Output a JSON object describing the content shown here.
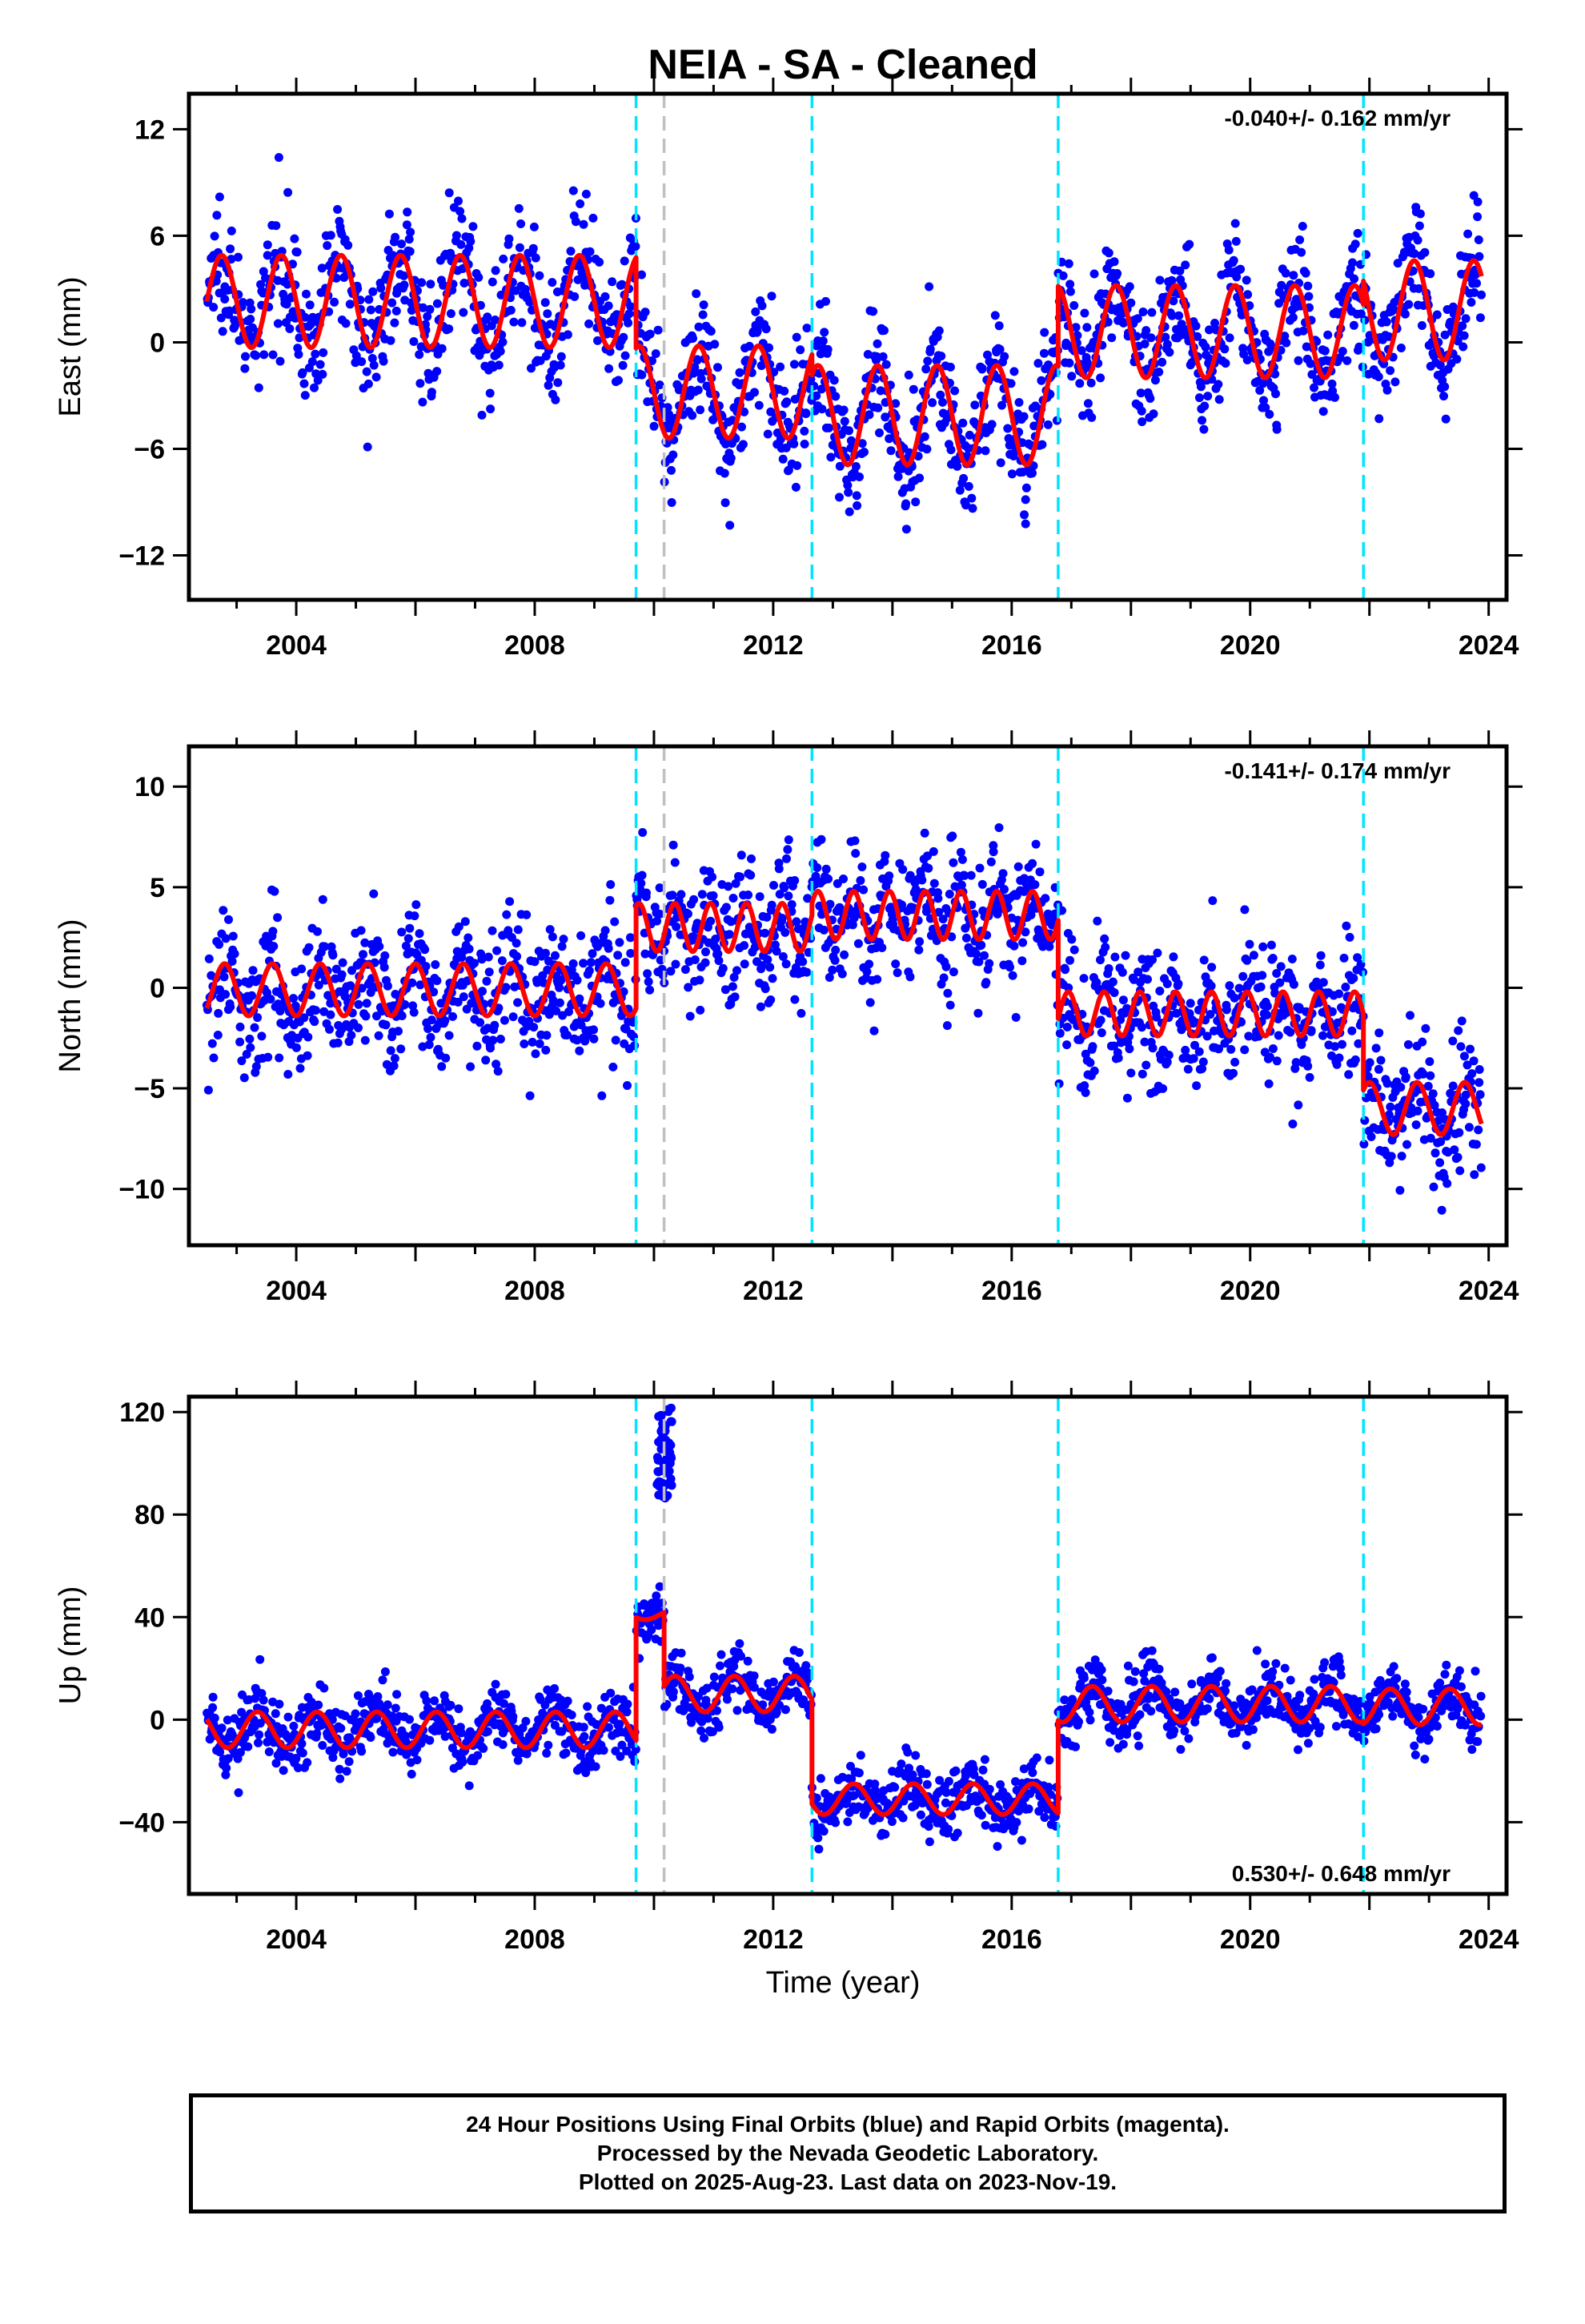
{
  "title": "NEIA  - SA - Cleaned",
  "xlabel": "Time (year)",
  "footer": {
    "line1": "24 Hour Positions Using Final Orbits (blue) and Rapid Orbits (magenta).",
    "line2": "Processed by the Nevada Geodetic Laboratory.",
    "line3": "Plotted on 2025-Aug-23. Last data on 2023-Nov-19."
  },
  "colors": {
    "points": "#0000ff",
    "model": "#ff0000",
    "equipment_change": "#00e5ff",
    "other_event": "#c0c0c0",
    "frame": "#000000"
  },
  "chart_data": [
    {
      "type": "scatter",
      "ylabel": "East (mm)",
      "rate_text": "-0.040+/- 0.162 mm/yr",
      "rate_position": "top-right",
      "xlim": [
        2002.2,
        2024.3
      ],
      "ylim": [
        -14.5,
        14.0
      ],
      "xticks": [
        2004,
        2008,
        2012,
        2016,
        2020,
        2024
      ],
      "xtick_labels": [
        "2004",
        "2008",
        "2012",
        "2016",
        "2020",
        "2024"
      ],
      "yticks": [
        -12,
        -6,
        0,
        6,
        12
      ],
      "ytick_labels": [
        "-12",
        "-6",
        "0",
        "6",
        "12"
      ],
      "event_lines_cyan": [
        2009.7,
        2012.65,
        2016.78,
        2021.9
      ],
      "event_lines_gray": [
        2010.17
      ],
      "observation_span": [
        2002.5,
        2023.88
      ],
      "model": [
        {
          "start": 2002.5,
          "end": 2009.7,
          "offset": 2.3,
          "amp": 2.6,
          "period": 1.0,
          "phase": 0.5
        },
        {
          "start": 2009.7,
          "end": 2012.65,
          "offset": -2.8,
          "amp": 2.6,
          "period": 1.0,
          "phase": 0.5
        },
        {
          "start": 2012.65,
          "end": 2016.78,
          "offset": -4.1,
          "amp": 2.8,
          "period": 1.0,
          "phase": 0.5
        },
        {
          "start": 2016.78,
          "end": 2021.9,
          "offset": 0.6,
          "amp": 2.6,
          "period": 1.0,
          "phase": 0.5
        },
        {
          "start": 2021.9,
          "end": 2023.88,
          "offset": 1.8,
          "amp": 2.8,
          "period": 1.0,
          "phase": 0.5
        }
      ],
      "scatter_sd": 1.7
    },
    {
      "type": "scatter",
      "ylabel": "North (mm)",
      "rate_text": "-0.141+/- 0.174 mm/yr",
      "rate_position": "top-right",
      "xlim": [
        2002.2,
        2024.3
      ],
      "ylim": [
        -12.8,
        12.0
      ],
      "xticks": [
        2004,
        2008,
        2012,
        2016,
        2020,
        2024
      ],
      "xtick_labels": [
        "2004",
        "2008",
        "2012",
        "2016",
        "2020",
        "2024"
      ],
      "yticks": [
        -10,
        -5,
        0,
        5,
        10
      ],
      "ytick_labels": [
        "-10",
        "-5",
        "0",
        "5",
        "10"
      ],
      "event_lines_cyan": [
        2009.7,
        2012.65,
        2016.78,
        2021.9
      ],
      "event_lines_gray": [
        2010.17
      ],
      "observation_span": [
        2002.5,
        2023.88
      ],
      "model": [
        {
          "start": 2002.5,
          "end": 2009.7,
          "offset": -0.1,
          "amp": 1.3,
          "period": 0.8,
          "phase": 0.2
        },
        {
          "start": 2009.7,
          "end": 2012.65,
          "offset": 3.0,
          "amp": 1.2,
          "period": 0.6,
          "phase": 0.2
        },
        {
          "start": 2012.65,
          "end": 2016.78,
          "offset": 3.6,
          "amp": 1.2,
          "period": 0.6,
          "phase": 0.2
        },
        {
          "start": 2016.78,
          "end": 2021.9,
          "offset": -1.3,
          "amp": 1.1,
          "period": 0.6,
          "phase": 0.2
        },
        {
          "start": 2021.9,
          "end": 2023.88,
          "offset": -6.0,
          "amp": 1.3,
          "period": 0.8,
          "phase": 0.2
        }
      ],
      "scatter_sd": 1.6
    },
    {
      "type": "scatter",
      "ylabel": "Up (mm)",
      "rate_text": "0.530+/- 0.648 mm/yr",
      "rate_position": "bottom-right",
      "xlim": [
        2002.2,
        2024.3
      ],
      "ylim": [
        -68,
        126
      ],
      "xticks": [
        2004,
        2008,
        2012,
        2016,
        2020,
        2024
      ],
      "xtick_labels": [
        "2004",
        "2008",
        "2012",
        "2016",
        "2020",
        "2024"
      ],
      "yticks": [
        -40,
        0,
        40,
        80,
        120
      ],
      "ytick_labels": [
        "-40",
        "0",
        "40",
        "80",
        "120"
      ],
      "event_lines_cyan": [
        2009.7,
        2012.65,
        2016.78,
        2021.9
      ],
      "event_lines_gray": [
        2010.17
      ],
      "observation_span": [
        2002.5,
        2023.88
      ],
      "model": [
        {
          "start": 2002.5,
          "end": 2009.7,
          "offset": -4,
          "amp": 7,
          "period": 1.0,
          "phase": 0.1
        },
        {
          "start": 2009.7,
          "end": 2010.17,
          "offset": 41,
          "amp": 2,
          "period": 1.0,
          "phase": 0.1
        },
        {
          "start": 2010.17,
          "end": 2012.65,
          "offset": 10,
          "amp": 7,
          "period": 1.0,
          "phase": 0.1
        },
        {
          "start": 2012.65,
          "end": 2016.78,
          "offset": -31,
          "amp": 6,
          "period": 1.0,
          "phase": 0.1
        },
        {
          "start": 2016.78,
          "end": 2021.9,
          "offset": 6,
          "amp": 7,
          "period": 1.0,
          "phase": 0.1
        },
        {
          "start": 2021.9,
          "end": 2023.88,
          "offset": 5,
          "amp": 7,
          "period": 1.0,
          "phase": 0.1
        }
      ],
      "scatter_sd": 6,
      "outlier_cluster": {
        "x_range": [
          2010.05,
          2010.3
        ],
        "y_range": [
          86,
          122
        ]
      }
    }
  ]
}
